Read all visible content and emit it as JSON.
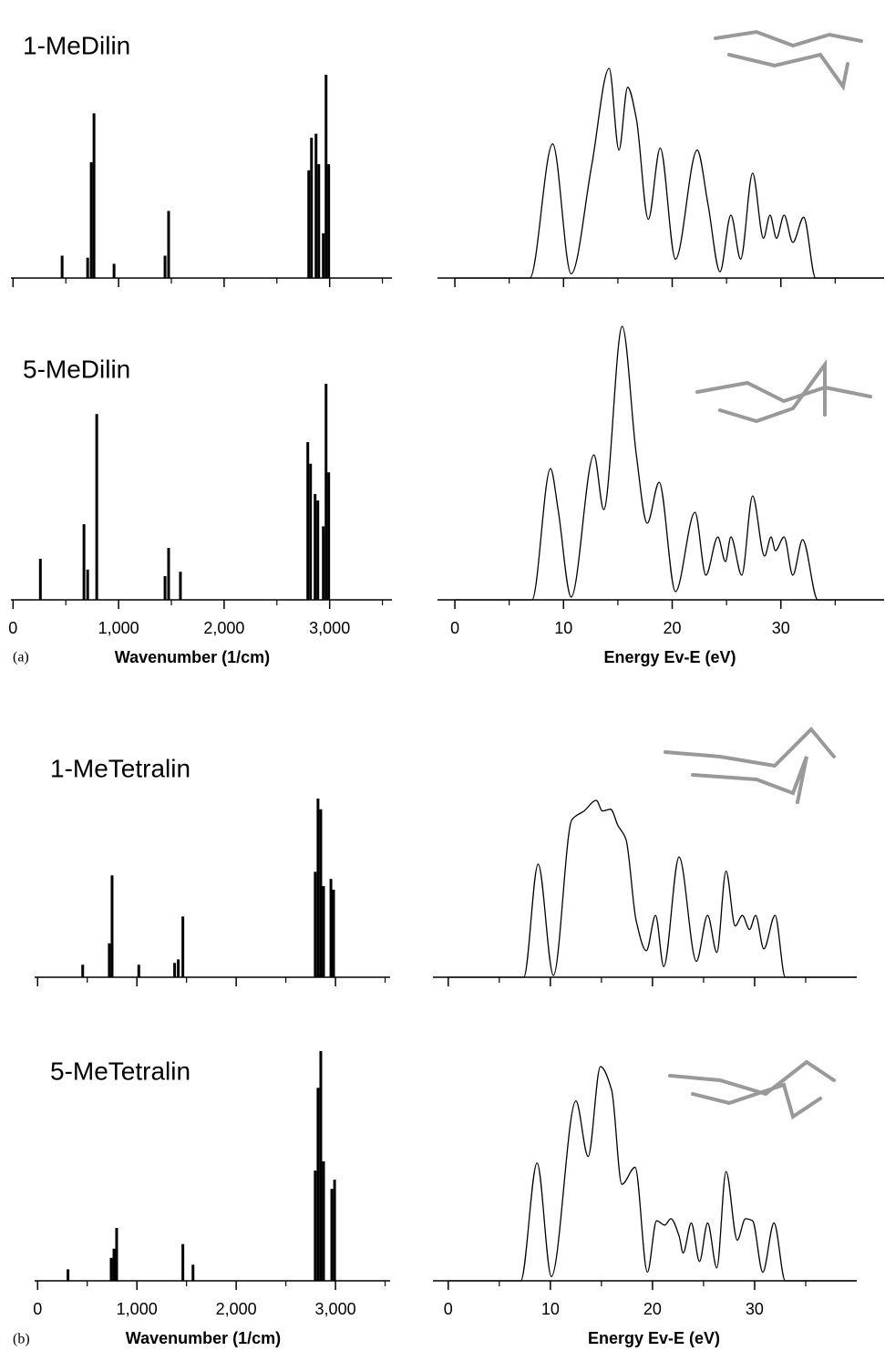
{
  "figure_labels": [
    "(a)",
    "(b)"
  ],
  "chart_data": [
    {
      "type": "bar",
      "title": "1-MeDilin",
      "color": "#000",
      "tick_labels": false,
      "x": [
        465,
        707,
        741,
        767,
        957,
        1440,
        1474,
        2802,
        2828,
        2871,
        2897,
        2940,
        2966,
        2991
      ],
      "values": [
        11,
        10,
        57,
        81,
        7,
        11,
        33,
        53,
        69,
        71,
        56,
        22,
        100,
        56
      ],
      "xlim": [
        -20,
        3590
      ],
      "ylim": [
        0,
        100
      ],
      "xticks": [
        0,
        {
          "value": 1000,
          "label": "1,000"
        },
        {
          "value": 2000,
          "label": "2,000"
        },
        {
          "value": 3000,
          "label": "3,000"
        }
      ],
      "xminorticks": [
        500,
        1500,
        2500,
        3500
      ]
    },
    {
      "type": "line",
      "color": "#000",
      "tick_labels": false,
      "x": [
        0,
        6.9,
        9.0,
        10.7,
        12.6,
        14.2,
        15.1,
        15.9,
        16.7,
        17.8,
        18.9,
        20.3,
        22.3,
        23.3,
        24.4,
        25.4,
        26.3,
        27.4,
        28.4,
        29.0,
        29.6,
        30.3,
        31.1,
        32.1,
        33.2,
        39.5
      ],
      "values": [
        0,
        0,
        64,
        2,
        54,
        100,
        61,
        91,
        76,
        28,
        62,
        9,
        61,
        35,
        3,
        30,
        9,
        50,
        19,
        30,
        19,
        30,
        17,
        29,
        0,
        0
      ],
      "xlim": [
        -1.6,
        39.5
      ],
      "ylim": [
        0,
        100
      ],
      "xticks": [
        0,
        10,
        20,
        30
      ],
      "xminorticks": [
        5,
        15,
        25,
        35
      ]
    },
    {
      "type": "bar",
      "title": "5-MeDilin",
      "color": "#000",
      "tick_labels": true,
      "xlabel": "Wavenumber (1/cm)",
      "x": [
        259,
        672,
        707,
        793,
        1440,
        1474,
        1586,
        2793,
        2819,
        2862,
        2888,
        2940,
        2966,
        2991
      ],
      "values": [
        19,
        35,
        14,
        86,
        11,
        24,
        13,
        73,
        63,
        49,
        46,
        34,
        100,
        59
      ],
      "xlim": [
        -20,
        3590
      ],
      "ylim": [
        0,
        100
      ],
      "xticks": [
        0,
        {
          "value": 1000,
          "label": "1,000"
        },
        {
          "value": 2000,
          "label": "2,000"
        },
        {
          "value": 3000,
          "label": "3,000"
        }
      ],
      "xminorticks": [
        500,
        1500,
        2500,
        3500
      ]
    },
    {
      "type": "line",
      "color": "#000",
      "tick_labels": true,
      "xlabel": "Energy Ev-E (eV)",
      "x": [
        0,
        7.1,
        8.8,
        9.5,
        10.7,
        12.8,
        13.7,
        15.4,
        16.7,
        17.7,
        18.8,
        20.3,
        22.1,
        23.1,
        24.2,
        24.9,
        25.4,
        26.4,
        27.4,
        28.5,
        29.1,
        29.5,
        30.3,
        31.1,
        32.0,
        33.4,
        39.5
      ],
      "values": [
        0,
        0,
        48,
        33,
        1,
        53,
        33,
        100,
        53,
        28,
        43,
        3,
        32,
        9,
        23,
        14,
        23,
        9,
        38,
        16,
        23,
        18,
        23,
        9,
        22,
        0,
        0
      ],
      "xlim": [
        -1.6,
        39.5
      ],
      "ylim": [
        0,
        100
      ],
      "xticks": [
        0,
        10,
        20,
        30
      ],
      "xminorticks": [
        5,
        15,
        25,
        35
      ]
    },
    {
      "type": "bar",
      "title": "1-MeTetralin",
      "color": "#000",
      "tick_labels": false,
      "x": [
        454,
        722,
        750,
        1019,
        1380,
        1417,
        1463,
        2796,
        2824,
        2852,
        2880,
        2954,
        2981
      ],
      "values": [
        7,
        19,
        57,
        7,
        8,
        10,
        34,
        59,
        100,
        94,
        51,
        55,
        49
      ],
      "xlim": [
        -30,
        3550
      ],
      "ylim": [
        0,
        100
      ],
      "xticks": [
        0,
        {
          "value": 1000,
          "label": "1,000"
        },
        {
          "value": 2000,
          "label": "2,000"
        },
        {
          "value": 3000,
          "label": "3,000"
        }
      ],
      "xminorticks": [
        500,
        1500,
        2500,
        3500
      ]
    },
    {
      "type": "line",
      "color": "#000",
      "tick_labels": false,
      "x": [
        0,
        7.4,
        8.8,
        10.3,
        12.1,
        13.3,
        14.5,
        15.1,
        15.9,
        16.6,
        17.4,
        18.4,
        19.4,
        20.3,
        21.1,
        22.6,
        24.3,
        25.4,
        26.3,
        27.2,
        28.1,
        28.8,
        29.5,
        30.1,
        30.9,
        32.0,
        33.0,
        40
      ],
      "values": [
        0,
        0,
        64,
        1,
        89,
        94,
        100,
        94,
        95,
        86,
        78,
        32,
        15,
        35,
        6,
        68,
        9,
        35,
        14,
        60,
        29,
        35,
        27,
        35,
        16,
        35,
        0,
        0
      ],
      "xlim": [
        -1.5,
        40
      ],
      "ylim": [
        0,
        100
      ],
      "xticks": [
        0,
        10,
        20,
        30
      ],
      "xminorticks": [
        5,
        15,
        25,
        35
      ]
    },
    {
      "type": "bar",
      "title": "5-MeTetralin",
      "color": "#000",
      "tick_labels": true,
      "xlabel": "Wavenumber (1/cm)",
      "x": [
        306,
        741,
        769,
        796,
        1463,
        1565,
        2796,
        2824,
        2852,
        2880,
        2963,
        2991
      ],
      "values": [
        5,
        10,
        14,
        23,
        16,
        7,
        48,
        84,
        100,
        52,
        40,
        44
      ],
      "xlim": [
        -30,
        3550
      ],
      "ylim": [
        0,
        100
      ],
      "xticks": [
        0,
        {
          "value": 1000,
          "label": "1,000"
        },
        {
          "value": 2000,
          "label": "2,000"
        },
        {
          "value": 3000,
          "label": "3,000"
        }
      ],
      "xminorticks": [
        500,
        1500,
        2500,
        3500
      ]
    },
    {
      "type": "line",
      "color": "#000",
      "tick_labels": true,
      "xlabel": "Energy Ev-E (eV)",
      "x": [
        0,
        7.1,
        8.7,
        10.1,
        12.5,
        13.7,
        14.9,
        16.0,
        17.0,
        18.3,
        19.5,
        20.4,
        21.2,
        21.8,
        22.6,
        23.0,
        23.8,
        24.6,
        25.4,
        26.3,
        27.2,
        28.3,
        29.1,
        29.8,
        30.8,
        31.9,
        33.0,
        40
      ],
      "values": [
        0,
        0,
        55,
        2,
        84,
        58,
        100,
        89,
        45,
        53,
        4,
        28,
        26,
        29,
        21,
        13,
        27,
        9,
        27,
        6,
        51,
        19,
        29,
        28,
        4,
        27,
        0,
        0
      ],
      "xlim": [
        -1.5,
        40
      ],
      "ylim": [
        0,
        100
      ],
      "xticks": [
        0,
        10,
        20,
        30
      ],
      "xminorticks": [
        5,
        15,
        25,
        35
      ]
    }
  ]
}
